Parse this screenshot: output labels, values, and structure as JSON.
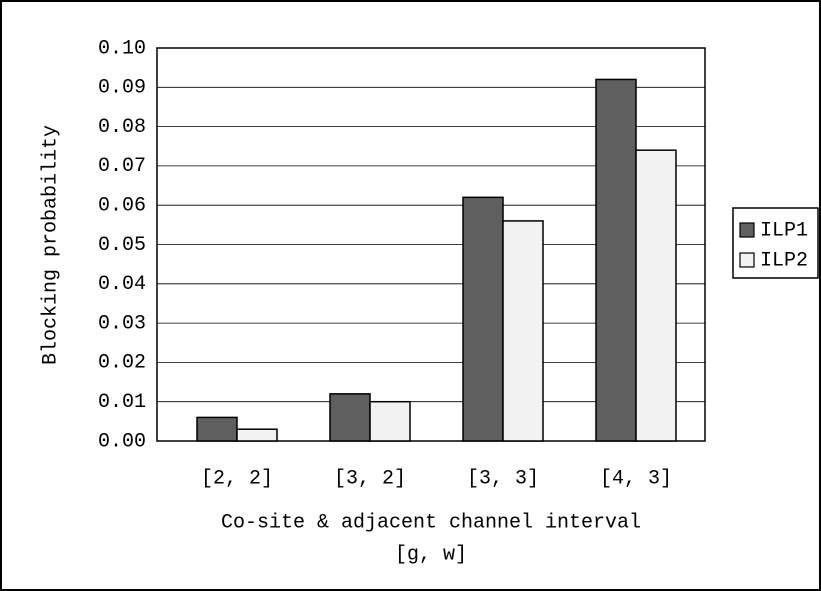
{
  "chart_data": {
    "type": "bar",
    "ylabel": "Blocking probability",
    "xlabel": [
      "Co-site & adjacent channel interval",
      "[g, w]"
    ],
    "categories": [
      "[2, 2]",
      "[3, 2]",
      "[3, 3]",
      "[4, 3]"
    ],
    "series": [
      {
        "name": "ILP1",
        "color": "#5f5f5f",
        "values": [
          0.006,
          0.012,
          0.062,
          0.092
        ]
      },
      {
        "name": "ILP2",
        "color": "#f2f2f2",
        "values": [
          0.003,
          0.01,
          0.056,
          0.074
        ]
      }
    ],
    "ylim": [
      0,
      0.1
    ],
    "yticks": [
      {
        "value": 0,
        "label": "0.00"
      },
      {
        "value": 0.01,
        "label": "0.01"
      },
      {
        "value": 0.02,
        "label": "0.02"
      },
      {
        "value": 0.03,
        "label": "0.03"
      },
      {
        "value": 0.04,
        "label": "0.04"
      },
      {
        "value": 0.05,
        "label": "0.05"
      },
      {
        "value": 0.06,
        "label": "0.06"
      },
      {
        "value": 0.07,
        "label": "0.07"
      },
      {
        "value": 0.08,
        "label": "0.08"
      },
      {
        "value": 0.09,
        "label": "0.09"
      },
      {
        "value": 0.1,
        "label": "0.10"
      }
    ],
    "grid": true,
    "legend": "right"
  }
}
